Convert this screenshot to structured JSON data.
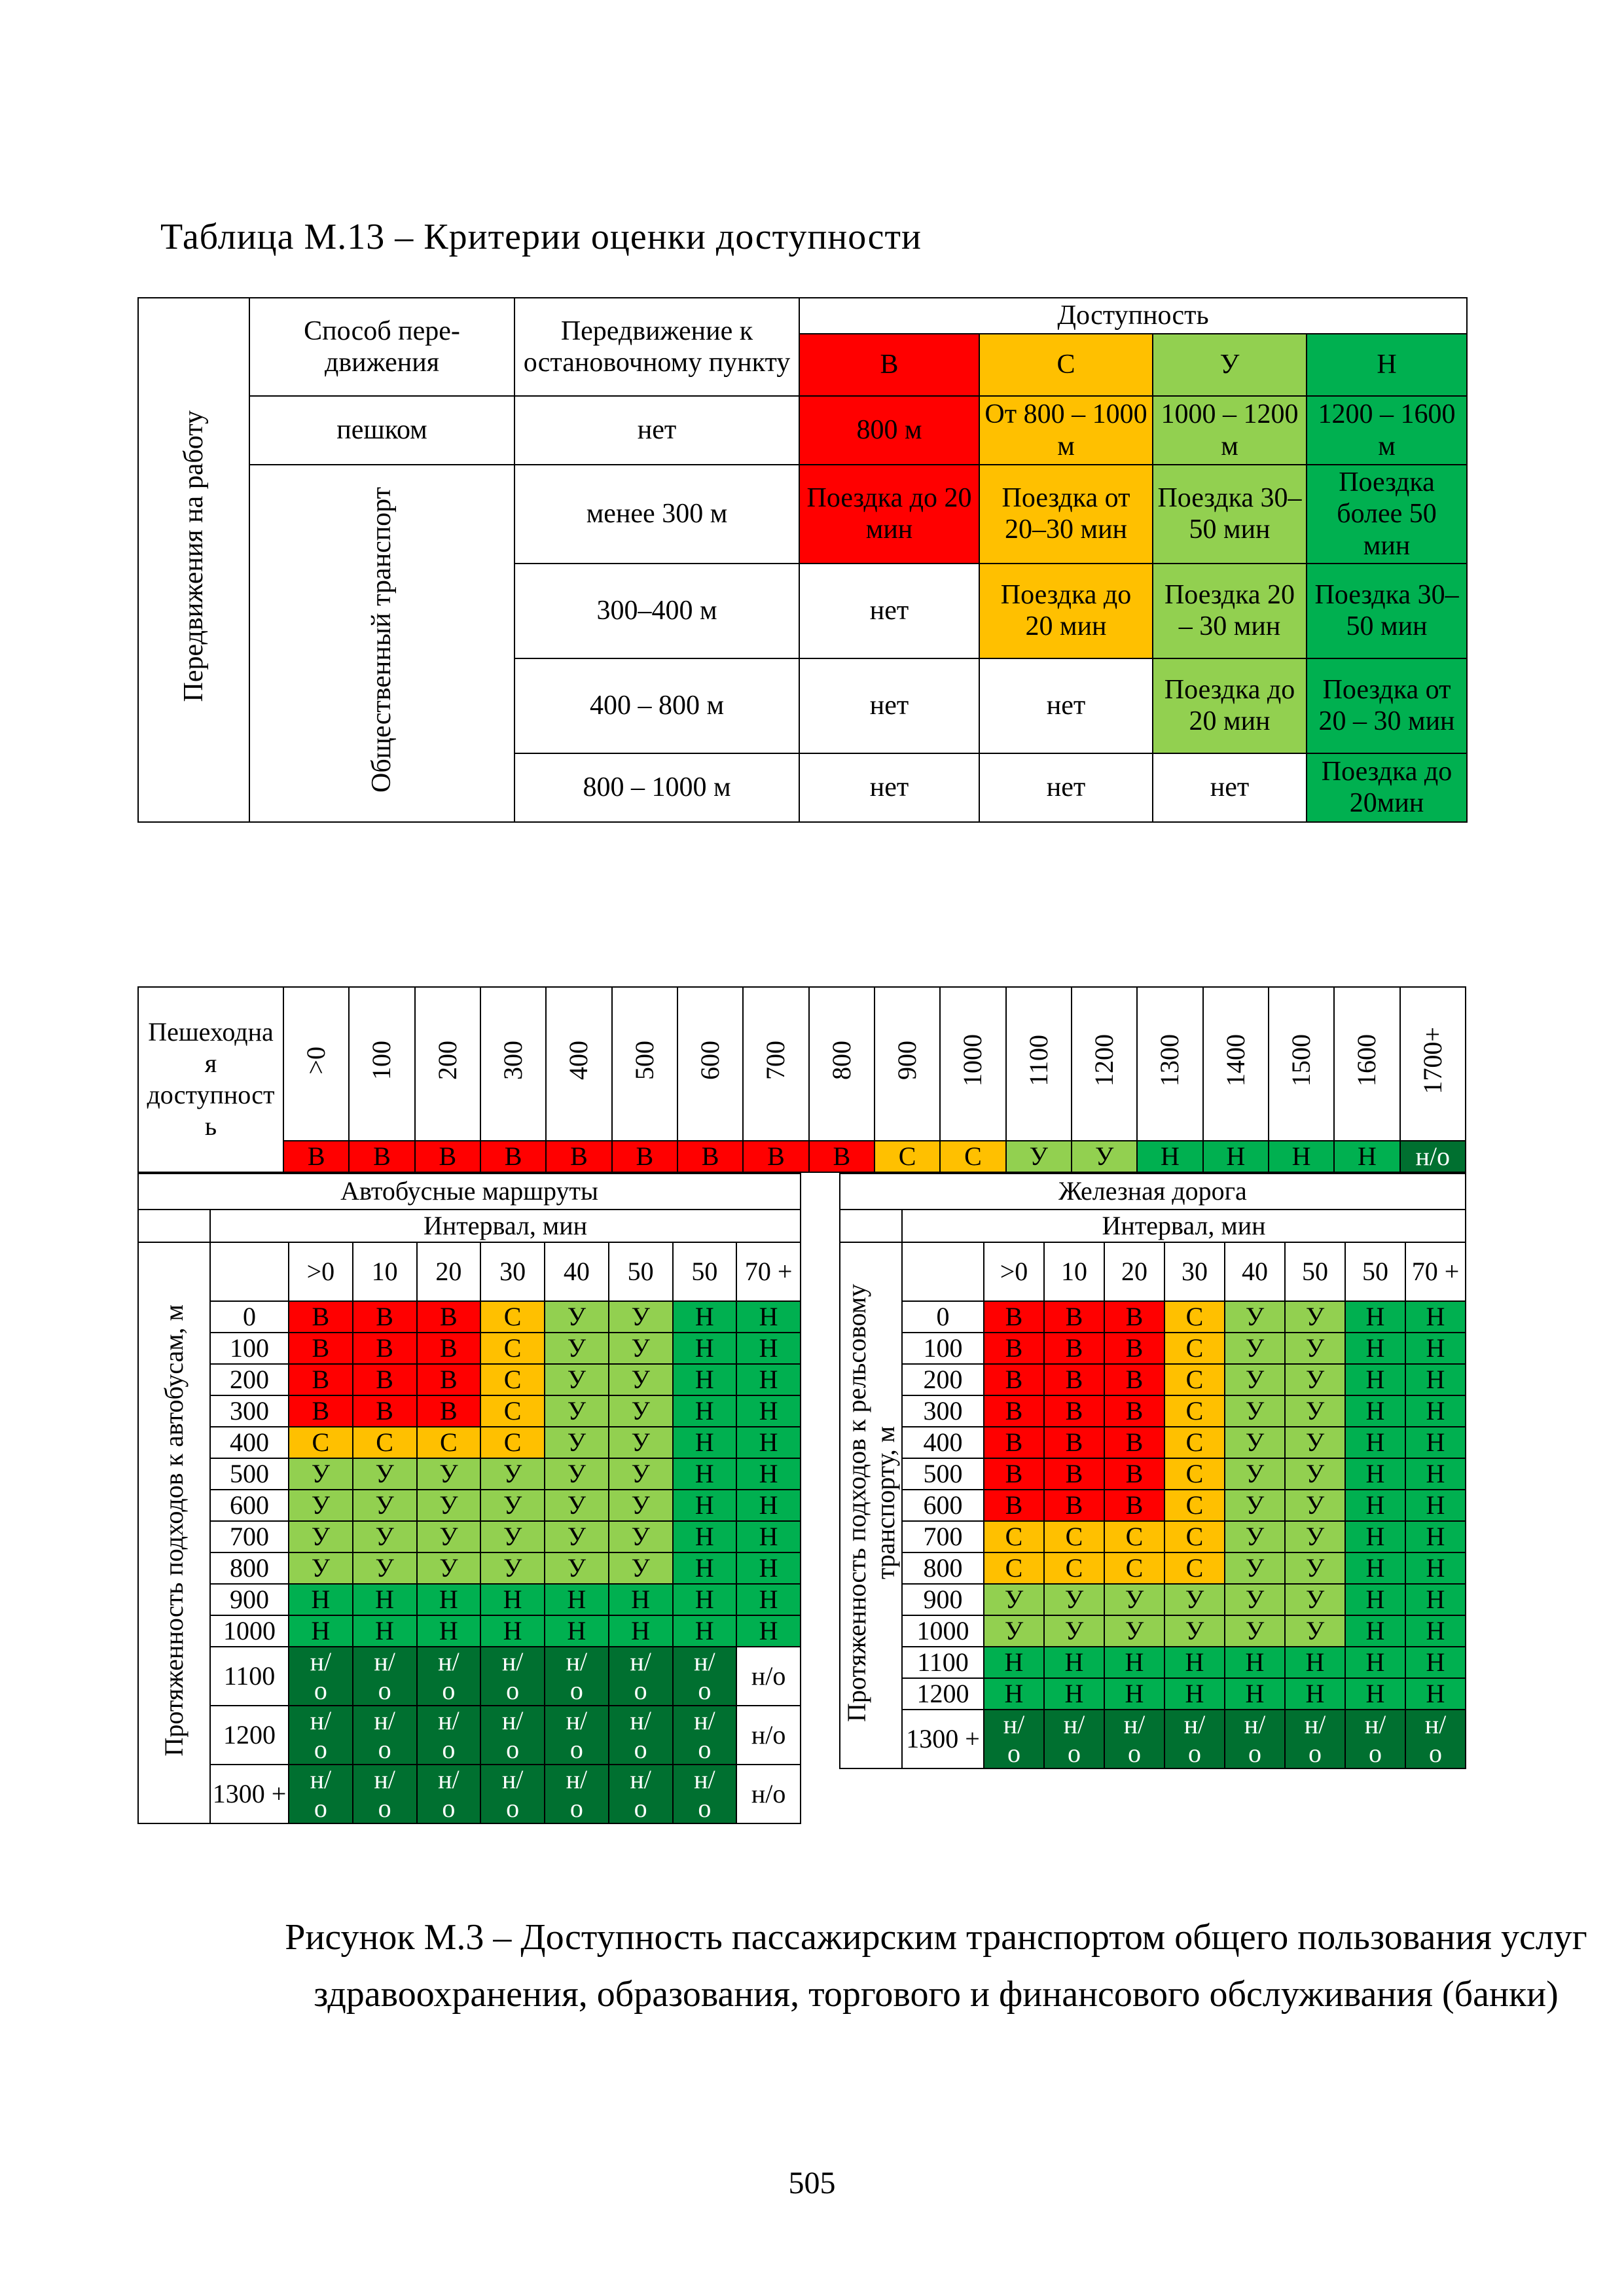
{
  "colors": {
    "B": "#FF0000",
    "C": "#FFC000",
    "U": "#92D050",
    "N": "#00B050",
    "NO": "#007030"
  },
  "page_number": "505",
  "table_m13": {
    "title": "Таблица М.13 – Критерии оценки доступности",
    "side_label": "Передвижения на работу",
    "transport_label": "Общественный транспорт",
    "header": {
      "mode": "Способ пере-движения",
      "to_stop": "Передвижение к остановочному пункту",
      "accessibility": "Доступность",
      "grades": [
        "В",
        "С",
        "У",
        "Н"
      ]
    },
    "rows": [
      {
        "mode": "пешком",
        "to_stop": "нет",
        "c1": "800 м",
        "c2": "От 800 – 1000 м",
        "c3": "1000 – 1200 м",
        "c4": "1200 – 1600 м"
      },
      {
        "to_stop": "менее 300 м",
        "c1": "Поездка до 20 мин",
        "c2": "Поездка от 20–30 мин",
        "c3": "Поездка 30–50 мин",
        "c4": "Поездка более 50 мин"
      },
      {
        "to_stop": "300–400 м",
        "c1": "нет",
        "c2": "Поездка до 20 мин",
        "c3": "Поездка 20 – 30 мин",
        "c4": "Поездка 30–50 мин"
      },
      {
        "to_stop": "400 – 800 м",
        "c1": "нет",
        "c2": "нет",
        "c3": "Поездка до 20 мин",
        "c4": "Поездка от 20 – 30 мин"
      },
      {
        "to_stop": "800 – 1000 м",
        "c1": "нет",
        "c2": "нет",
        "c3": "нет",
        "c4": "Поездка до 20мин"
      }
    ]
  },
  "figure": {
    "strip": {
      "label": "Пешеходная доступность",
      "columns": [
        ">0",
        "100",
        "200",
        "300",
        "400",
        "500",
        "600",
        "700",
        "800",
        "900",
        "1000",
        "1100",
        "1200",
        "1300",
        "1400",
        "1500",
        "1600",
        "1700+"
      ],
      "grades": [
        "В",
        "В",
        "В",
        "В",
        "В",
        "В",
        "В",
        "В",
        "В",
        "С",
        "С",
        "У",
        "У",
        "Н",
        "Н",
        "Н",
        "Н",
        "н/о"
      ]
    },
    "bus": {
      "title": "Автобусные маршруты",
      "interval_label": "Интервал, мин",
      "side_label": "Протяженность подходов к автобусам, м",
      "col_headers": [
        ">0",
        "10",
        "20",
        "30",
        "40",
        "50",
        "50",
        "70 +"
      ],
      "rows": [
        {
          "label": "0",
          "cells": [
            "В",
            "В",
            "В",
            "С",
            "У",
            "У",
            "Н",
            "Н"
          ]
        },
        {
          "label": "100",
          "cells": [
            "В",
            "В",
            "В",
            "С",
            "У",
            "У",
            "Н",
            "Н"
          ]
        },
        {
          "label": "200",
          "cells": [
            "В",
            "В",
            "В",
            "С",
            "У",
            "У",
            "Н",
            "Н"
          ]
        },
        {
          "label": "300",
          "cells": [
            "В",
            "В",
            "В",
            "С",
            "У",
            "У",
            "Н",
            "Н"
          ]
        },
        {
          "label": "400",
          "cells": [
            "С",
            "С",
            "С",
            "С",
            "У",
            "У",
            "Н",
            "Н"
          ]
        },
        {
          "label": "500",
          "cells": [
            "У",
            "У",
            "У",
            "У",
            "У",
            "У",
            "Н",
            "Н"
          ]
        },
        {
          "label": "600",
          "cells": [
            "У",
            "У",
            "У",
            "У",
            "У",
            "У",
            "Н",
            "Н"
          ]
        },
        {
          "label": "700",
          "cells": [
            "У",
            "У",
            "У",
            "У",
            "У",
            "У",
            "Н",
            "Н"
          ]
        },
        {
          "label": "800",
          "cells": [
            "У",
            "У",
            "У",
            "У",
            "У",
            "У",
            "Н",
            "Н"
          ]
        },
        {
          "label": "900",
          "cells": [
            "Н",
            "Н",
            "Н",
            "Н",
            "Н",
            "Н",
            "Н",
            "Н"
          ]
        },
        {
          "label": "1000",
          "cells": [
            "Н",
            "Н",
            "Н",
            "Н",
            "Н",
            "Н",
            "Н",
            "Н"
          ]
        },
        {
          "label": "1100",
          "cells": [
            "н/о",
            "н/о",
            "н/о",
            "н/о",
            "н/о",
            "н/о",
            "н/о",
            {
              "v": "н/о",
              "plain": true
            }
          ]
        },
        {
          "label": "1200",
          "cells": [
            "н/о",
            "н/о",
            "н/о",
            "н/о",
            "н/о",
            "н/о",
            "н/о",
            {
              "v": "н/о",
              "plain": true
            }
          ]
        },
        {
          "label": "1300 +",
          "cells": [
            "н/о",
            "н/о",
            "н/о",
            "н/о",
            "н/о",
            "н/о",
            "н/о",
            {
              "v": "н/о",
              "plain": true
            }
          ]
        }
      ]
    },
    "rail": {
      "title": "Железная дорога",
      "interval_label": "Интервал, мин",
      "side_label": "Протяженность подходов к рельсовому транспорту, м",
      "col_headers": [
        ">0",
        "10",
        "20",
        "30",
        "40",
        "50",
        "50",
        "70 +"
      ],
      "rows": [
        {
          "label": "0",
          "cells": [
            "В",
            "В",
            "В",
            "С",
            "У",
            "У",
            "Н",
            "Н"
          ]
        },
        {
          "label": "100",
          "cells": [
            "В",
            "В",
            "В",
            "С",
            "У",
            "У",
            "Н",
            "Н"
          ]
        },
        {
          "label": "200",
          "cells": [
            "В",
            "В",
            "В",
            "С",
            "У",
            "У",
            "Н",
            "Н"
          ]
        },
        {
          "label": "300",
          "cells": [
            "В",
            "В",
            "В",
            "С",
            "У",
            "У",
            "Н",
            "Н"
          ]
        },
        {
          "label": "400",
          "cells": [
            "В",
            "В",
            "В",
            "С",
            "У",
            "У",
            "Н",
            "Н"
          ]
        },
        {
          "label": "500",
          "cells": [
            "В",
            "В",
            "В",
            "С",
            "У",
            "У",
            "Н",
            "Н"
          ]
        },
        {
          "label": "600",
          "cells": [
            "В",
            "В",
            "В",
            "С",
            "У",
            "У",
            "Н",
            "Н"
          ]
        },
        {
          "label": "700",
          "cells": [
            "С",
            "С",
            "С",
            "С",
            "У",
            "У",
            "Н",
            "Н"
          ]
        },
        {
          "label": "800",
          "cells": [
            "С",
            "С",
            "С",
            "С",
            "У",
            "У",
            "Н",
            "Н"
          ]
        },
        {
          "label": "900",
          "cells": [
            "У",
            "У",
            "У",
            "У",
            "У",
            "У",
            "Н",
            "Н"
          ]
        },
        {
          "label": "1000",
          "cells": [
            "У",
            "У",
            "У",
            "У",
            "У",
            "У",
            "Н",
            "Н"
          ]
        },
        {
          "label": "1100",
          "cells": [
            "Н",
            "Н",
            "Н",
            "Н",
            "Н",
            "Н",
            "Н",
            "Н"
          ]
        },
        {
          "label": "1200",
          "cells": [
            "Н",
            "Н",
            "Н",
            "Н",
            "Н",
            "Н",
            "Н",
            "Н"
          ]
        },
        {
          "label": "1300 +",
          "cells": [
            "н/о",
            "н/о",
            "н/о",
            "н/о",
            "н/о",
            "н/о",
            "н/о",
            "н/о"
          ]
        }
      ]
    },
    "caption": "Рисунок М.3 – Доступность пассажирским транспортом общего пользования услуг здравоохранения, образования, торгового и финансового обслуживания (банки)"
  }
}
